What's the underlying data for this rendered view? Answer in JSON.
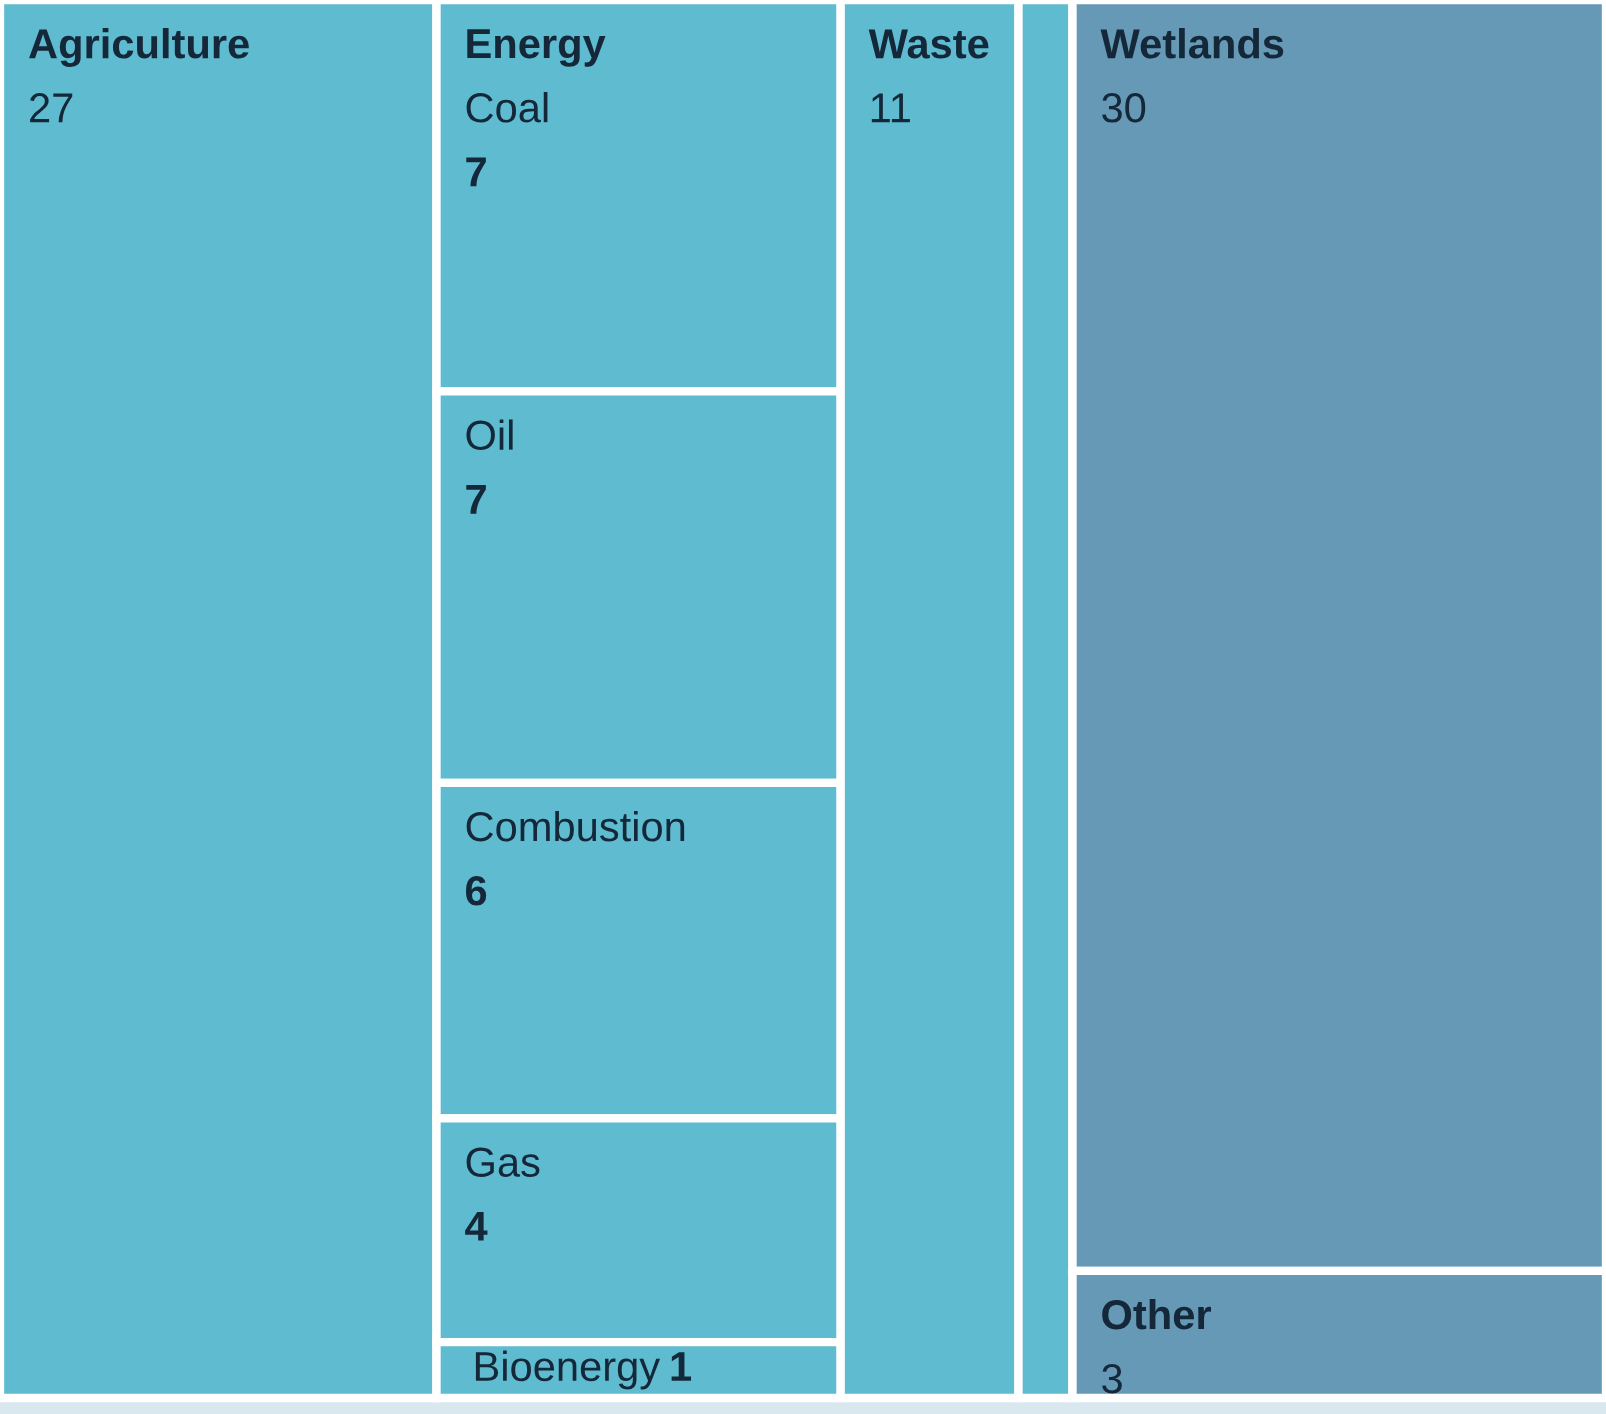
{
  "chart_data": {
    "type": "other",
    "categories": [
      "Agriculture",
      "Coal",
      "Oil",
      "Combustion",
      "Gas",
      "Bioenergy",
      "Waste",
      null,
      "Wetlands",
      "Other"
    ],
    "data_labels": true,
    "series": [
      {
        "color": "#5fbbcf",
        "values": [
          27,
          null,
          null,
          null,
          null,
          null,
          null,
          null,
          null,
          null
        ]
      },
      {
        "name": "Energy",
        "color": "#5fbbcf",
        "values": [
          null,
          7,
          7,
          6,
          4,
          1,
          null,
          null,
          null,
          null
        ]
      },
      {
        "color": "#5fbbcf",
        "values": [
          null,
          null,
          null,
          null,
          null,
          null,
          11,
          null,
          null,
          null
        ]
      },
      {
        "color": "#5fbbcf",
        "values": [
          null,
          null,
          null,
          null,
          null,
          null,
          null,
          null,
          null,
          null
        ]
      },
      {
        "color": "#6699b6",
        "values": [
          null,
          null,
          null,
          null,
          null,
          null,
          null,
          null,
          30,
          3
        ]
      }
    ]
  }
}
